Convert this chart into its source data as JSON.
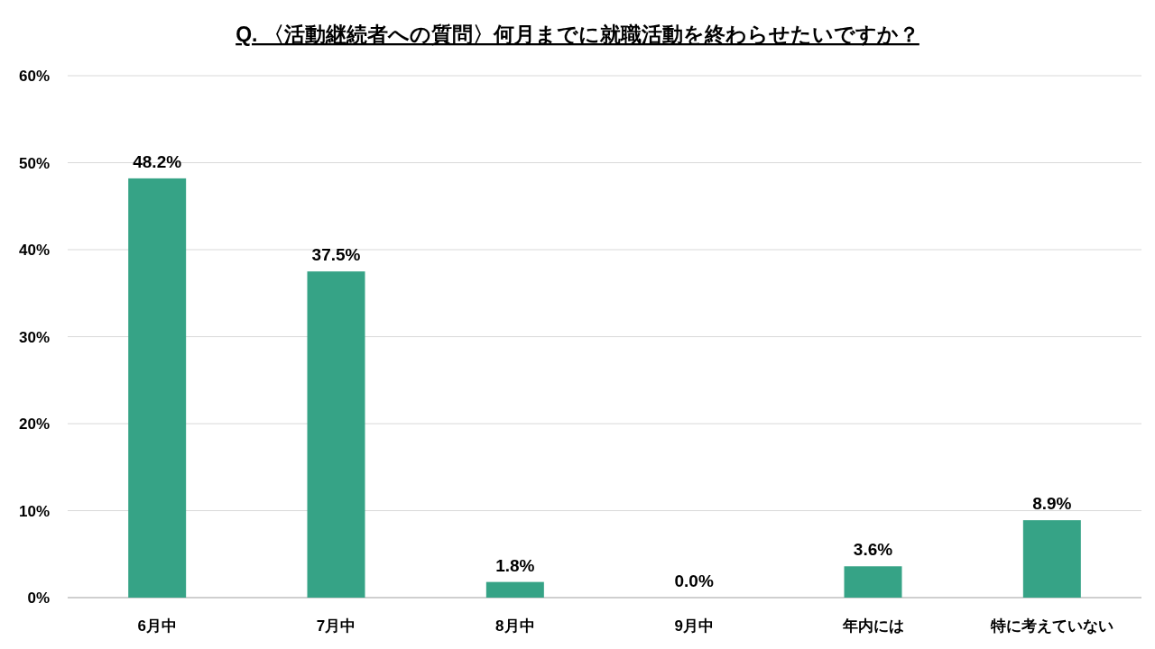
{
  "chart_data": {
    "type": "bar",
    "title": "Q. 〈活動継続者への質問〉何月までに就職活動を終わらせたいですか？",
    "categories": [
      "6月中",
      "7月中",
      "8月中",
      "9月中",
      "年内には",
      "特に考えていない"
    ],
    "values": [
      48.2,
      37.5,
      1.8,
      0.0,
      3.6,
      8.9
    ],
    "value_labels": [
      "48.2%",
      "37.5%",
      "1.8%",
      "0.0%",
      "3.6%",
      "8.9%"
    ],
    "color": "#36a386",
    "ylim": [
      0,
      60
    ],
    "yticks": [
      {
        "value": 0,
        "label": "0%"
      },
      {
        "value": 10,
        "label": "10%"
      },
      {
        "value": 20,
        "label": "20%"
      },
      {
        "value": 30,
        "label": "30%"
      },
      {
        "value": 40,
        "label": "40%"
      },
      {
        "value": 50,
        "label": "50%"
      },
      {
        "value": 60,
        "label": "60%"
      }
    ],
    "grid": "y"
  }
}
